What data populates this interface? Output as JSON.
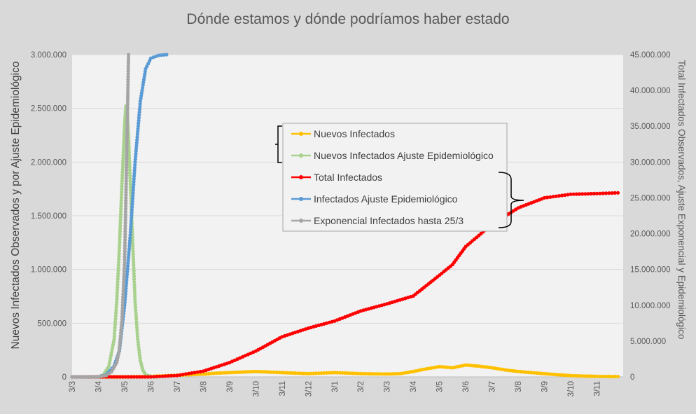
{
  "chart_data": {
    "type": "line",
    "title": "Dónde estamos y dónde podríamos haber estado",
    "ylabel": "Nuevos Infectados Observados y por Ajuste Epidemiológico",
    "y2label": "Total Infectados Observados, Ajuste Exponencial y Epidemiológico",
    "xlabel": "",
    "ylim": [
      0,
      3000000
    ],
    "y2lim": [
      0,
      45000000
    ],
    "yticks": [
      "0",
      "500.000",
      "1.000.000",
      "1.500.000",
      "2.000.000",
      "2.500.000",
      "3.000.000"
    ],
    "y2ticks": [
      "0",
      "5.000.000",
      "10.000.000",
      "15.000.000",
      "20.000.000",
      "25.000.000",
      "30.000.000",
      "35.000.000",
      "40.000.000",
      "45.000.000"
    ],
    "x_tick_labels": [
      "3/3",
      "3/4",
      "3/5",
      "3/6",
      "3/7",
      "3/8",
      "3/9",
      "3/10",
      "3/11",
      "3/12",
      "3/1",
      "3/2",
      "3/3",
      "3/4",
      "3/5",
      "3/6",
      "3/7",
      "3/8",
      "3/9",
      "3/10",
      "3/11"
    ],
    "x_tick_positions": [
      0,
      1,
      2,
      3,
      4,
      5,
      6,
      7,
      8,
      9,
      10,
      11,
      12,
      13,
      14,
      15,
      16,
      17,
      18,
      19,
      20
    ],
    "xlim": [
      0,
      21
    ],
    "grid": true,
    "legend_position": "center",
    "legend": [
      {
        "label": "Nuevos Infectados",
        "color": "#ffc000",
        "axis": "left"
      },
      {
        "label": "Nuevos Infectados Ajuste Epidemiológico",
        "color": "#a9d18e",
        "axis": "left"
      },
      {
        "label": "Total Infectados",
        "color": "#ff0000",
        "axis": "right"
      },
      {
        "label": "Infectados Ajuste Epidemiológico",
        "color": "#5b9bd5",
        "axis": "right"
      },
      {
        "label": "Exponencial Infectados hasta 25/3",
        "color": "#a5a5a5",
        "axis": "right"
      }
    ],
    "series": [
      {
        "name": "Nuevos Infectados",
        "axis": "left",
        "color": "#ffc000",
        "x": [
          0,
          1,
          2,
          3,
          4,
          5,
          5.5,
          6,
          6.5,
          7,
          7.5,
          8,
          8.5,
          9,
          9.5,
          10,
          10.5,
          11,
          11.5,
          12,
          12.5,
          13,
          13.5,
          14,
          14.5,
          15,
          15.5,
          16,
          16.5,
          17,
          17.5,
          18,
          18.5,
          19,
          19.5,
          20,
          20.8
        ],
        "values": [
          0,
          0,
          0,
          5000,
          15000,
          25000,
          35000,
          40000,
          45000,
          50000,
          45000,
          40000,
          35000,
          30000,
          35000,
          40000,
          35000,
          30000,
          28000,
          27000,
          30000,
          50000,
          75000,
          95000,
          85000,
          110000,
          100000,
          85000,
          65000,
          50000,
          40000,
          30000,
          20000,
          12000,
          8000,
          5000,
          3000
        ]
      },
      {
        "name": "Nuevos Infectados Ajuste Epidemiológico",
        "axis": "left",
        "color": "#a9d18e",
        "x": [
          0,
          1,
          1.2,
          1.4,
          1.6,
          1.7,
          1.8,
          1.9,
          2.0,
          2.05,
          2.1,
          2.15,
          2.2,
          2.3,
          2.4,
          2.5,
          2.6,
          2.7,
          2.8,
          3.0,
          3.2
        ],
        "values": [
          0,
          0,
          20000,
          100000,
          350000,
          700000,
          1200000,
          1800000,
          2350000,
          2520000,
          2450000,
          2250000,
          1900000,
          1300000,
          700000,
          350000,
          150000,
          60000,
          20000,
          5000,
          0
        ]
      },
      {
        "name": "Total Infectados",
        "axis": "right",
        "color": "#ff0000",
        "x": [
          0,
          3,
          4,
          5,
          6,
          7,
          8,
          9,
          10,
          11,
          12,
          13,
          14,
          14.5,
          15,
          16,
          17,
          18,
          19,
          20,
          20.8
        ],
        "values": [
          0,
          0,
          200000,
          800000,
          2000000,
          3600000,
          5600000,
          6800000,
          7800000,
          9200000,
          10200000,
          11300000,
          14200000,
          15700000,
          18200000,
          21300000,
          23600000,
          25000000,
          25500000,
          25600000,
          25700000
        ]
      },
      {
        "name": "Infectados Ajuste Epidemiológico",
        "axis": "right",
        "color": "#5b9bd5",
        "x": [
          0,
          1,
          1.3,
          1.6,
          1.8,
          2.0,
          2.2,
          2.4,
          2.6,
          2.8,
          3.0,
          3.3,
          3.6
        ],
        "values": [
          0,
          0,
          300000,
          1500000,
          3600000,
          10000000,
          19000000,
          30000000,
          38500000,
          43000000,
          44500000,
          44900000,
          45000000
        ]
      },
      {
        "name": "Exponencial Infectados hasta 25/3",
        "axis": "right",
        "color": "#a5a5a5",
        "x": [
          0,
          1,
          1.3,
          1.5,
          1.7,
          1.8,
          1.9,
          2.0,
          2.05,
          2.1,
          2.15
        ],
        "values": [
          0,
          0,
          200000,
          700000,
          2000000,
          3800000,
          8000000,
          16000000,
          25000000,
          35000000,
          45000000
        ]
      }
    ]
  }
}
